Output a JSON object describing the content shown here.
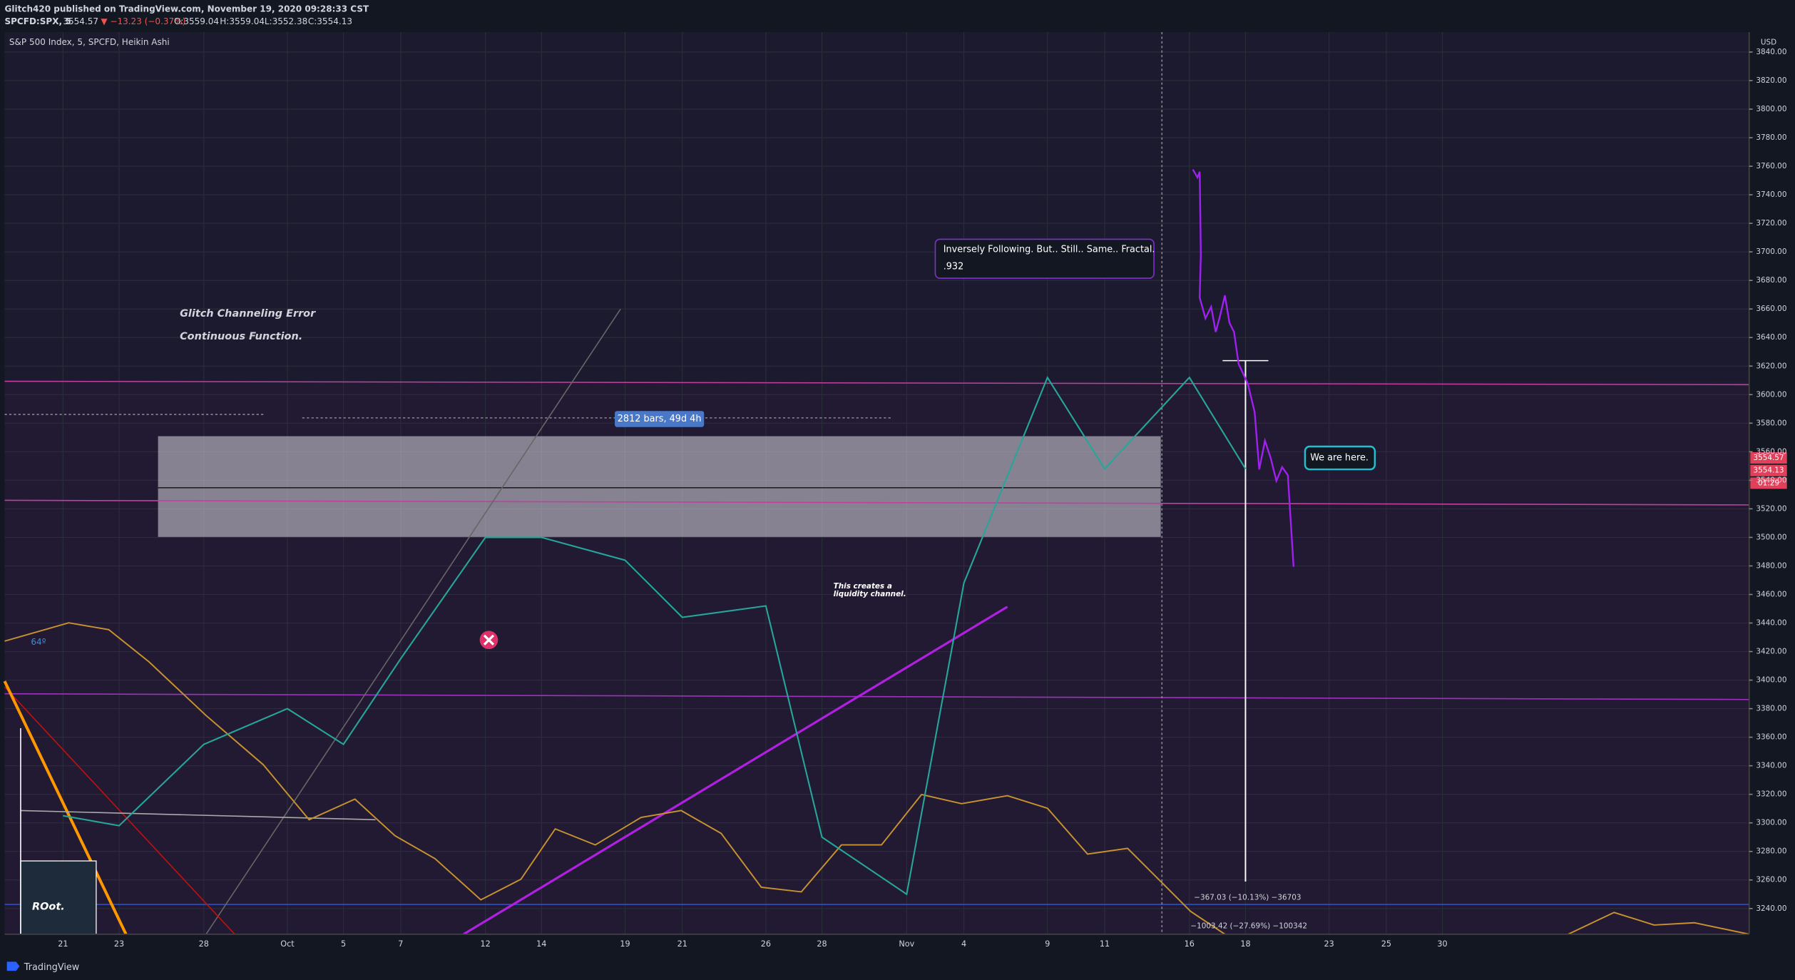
{
  "header": {
    "publisher": "Glitch420 published on TradingView.com, November 19, 2020 09:28:33 CST",
    "symbol": "SPCFD:SPX, 5",
    "last": "3554.57",
    "change": "▼ −13.23 (−0.37%)",
    "ohlc": [
      "O:3559.04",
      "H:3559.04",
      "L:3552.38",
      "C:3554.13"
    ]
  },
  "footer": {
    "brand": "TradingView"
  },
  "chart_data": {
    "type": "line",
    "title": "S&P 500 Index, 5, SPCFD, Heikin Ashi",
    "categories": [
      "21",
      "23",
      "28",
      "Oct",
      "5",
      "7",
      "12",
      "14",
      "19",
      "21",
      "26",
      "28",
      "Nov",
      "4",
      "9",
      "11",
      "16",
      "18",
      "23",
      "25",
      "30"
    ],
    "values": [
      3305,
      3298,
      3355,
      3380,
      3355,
      3415,
      3500,
      3500,
      3484,
      3444,
      3452,
      3290,
      3250,
      3468,
      3612,
      3548,
      3612,
      3548,
      null,
      null,
      null
    ],
    "color": "#26a69a",
    "ylim": [
      3222,
      3854
    ],
    "yticks": [
      {
        "value": 3240,
        "label": "3240.00"
      },
      {
        "value": 3260,
        "label": "3260.00"
      },
      {
        "value": 3280,
        "label": "3280.00"
      },
      {
        "value": 3300,
        "label": "3300.00"
      },
      {
        "value": 3320,
        "label": "3320.00"
      },
      {
        "value": 3340,
        "label": "3340.00"
      },
      {
        "value": 3360,
        "label": "3360.00"
      },
      {
        "value": 3380,
        "label": "3380.00"
      },
      {
        "value": 3400,
        "label": "3400.00"
      },
      {
        "value": 3420,
        "label": "3420.00"
      },
      {
        "value": 3440,
        "label": "3440.00"
      },
      {
        "value": 3460,
        "label": "3460.00"
      },
      {
        "value": 3480,
        "label": "3480.00"
      },
      {
        "value": 3500,
        "label": "3500.00"
      },
      {
        "value": 3520,
        "label": "3520.00"
      },
      {
        "value": 3540,
        "label": "3540.00"
      },
      {
        "value": 3560,
        "label": "3560.00"
      },
      {
        "value": 3580,
        "label": "3580.00"
      },
      {
        "value": 3600,
        "label": "3600.00"
      },
      {
        "value": 3620,
        "label": "3620.00"
      },
      {
        "value": 3640,
        "label": "3640.00"
      },
      {
        "value": 3660,
        "label": "3660.00"
      },
      {
        "value": 3680,
        "label": "3680.00"
      },
      {
        "value": 3700,
        "label": "3700.00"
      },
      {
        "value": 3720,
        "label": "3720.00"
      },
      {
        "value": 3740,
        "label": "3740.00"
      },
      {
        "value": 3760,
        "label": "3760.00"
      },
      {
        "value": 3780,
        "label": "3780.00"
      },
      {
        "value": 3800,
        "label": "3800.00"
      },
      {
        "value": 3820,
        "label": "3820.00"
      },
      {
        "value": 3840,
        "label": "3840.00"
      }
    ],
    "grid": true,
    "y_unit": "USD",
    "price_labels": [
      "3554.57",
      "3554.13",
      "01:29"
    ],
    "annotations": [
      "Glitch Channeling Error",
      "Continuous Function.",
      "2812 bars, 49d 4h",
      "Inversely Following. But.. Still.. Same.. Fractal.",
      ".932",
      "We are here.",
      "This creates a",
      "liquidity channel.",
      "64º",
      "ROot.",
      "−367.03 (−10.13%) −36703",
      "−1003.42 (−27.69%) −100342"
    ]
  }
}
